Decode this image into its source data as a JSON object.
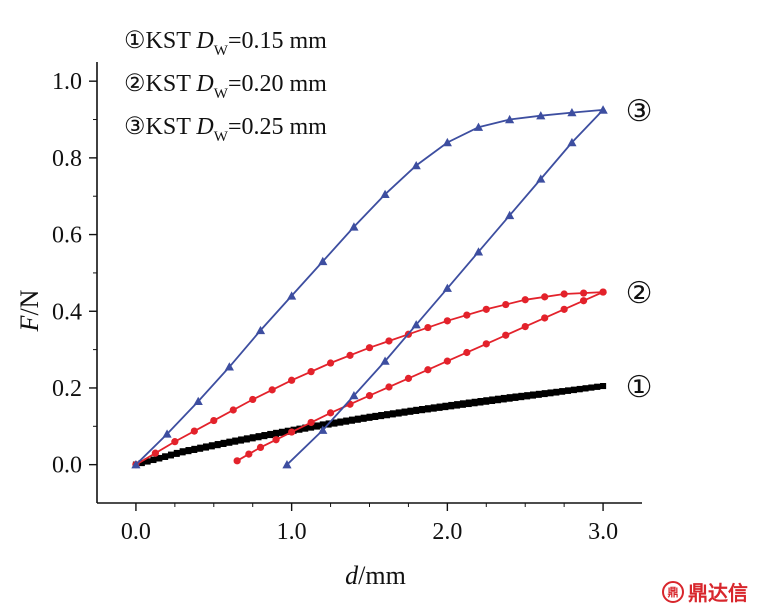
{
  "chart_data": {
    "type": "line",
    "xlabel_italic": "d",
    "xlabel_unit": "/mm",
    "ylabel_italic": "F",
    "ylabel_unit": "/N",
    "xlim": [
      -0.25,
      3.25
    ],
    "ylim": [
      -0.1,
      1.05
    ],
    "x_ticks": [
      0.0,
      1.0,
      2.0,
      3.0
    ],
    "x_tick_labels": [
      "0.0",
      "1.0",
      "2.0",
      "3.0"
    ],
    "y_ticks": [
      0.0,
      0.2,
      0.4,
      0.6,
      0.8,
      1.0
    ],
    "y_tick_labels": [
      "0.0",
      "0.2",
      "0.4",
      "0.6",
      "0.8",
      "1.0"
    ],
    "grid": false,
    "legend_position": "top-left",
    "series": [
      {
        "name": "①KST Dw=0.15 mm",
        "legend_marker": "①",
        "legend_prefix": "KST ",
        "legend_italic": "D",
        "legend_sub": "W",
        "legend_value": "=0.15 mm",
        "curve_label": "①",
        "color": "#000000",
        "marker": "square",
        "loading": [
          [
            0.0,
            0.0
          ],
          [
            0.3,
            0.035
          ],
          [
            0.6,
            0.06
          ],
          [
            0.9,
            0.083
          ],
          [
            1.2,
            0.105
          ],
          [
            1.5,
            0.125
          ],
          [
            1.8,
            0.143
          ],
          [
            2.1,
            0.16
          ],
          [
            2.4,
            0.176
          ],
          [
            2.7,
            0.19
          ],
          [
            3.0,
            0.205
          ]
        ],
        "unloading": [
          [
            3.0,
            0.205
          ],
          [
            2.7,
            0.188
          ],
          [
            2.4,
            0.172
          ],
          [
            2.1,
            0.156
          ],
          [
            1.8,
            0.14
          ],
          [
            1.5,
            0.122
          ],
          [
            1.2,
            0.102
          ],
          [
            0.9,
            0.08
          ],
          [
            0.6,
            0.057
          ],
          [
            0.3,
            0.032
          ],
          [
            0.0,
            0.0
          ]
        ]
      },
      {
        "name": "②KST Dw=0.20 mm",
        "legend_marker": "②",
        "legend_prefix": "KST ",
        "legend_italic": "D",
        "legend_sub": "W",
        "legend_value": "=0.20 mm",
        "curve_label": "②",
        "color": "#e3222b",
        "marker": "circle",
        "loading": [
          [
            0.0,
            0.0
          ],
          [
            0.25,
            0.06
          ],
          [
            0.5,
            0.115
          ],
          [
            0.75,
            0.17
          ],
          [
            1.0,
            0.22
          ],
          [
            1.25,
            0.265
          ],
          [
            1.5,
            0.305
          ],
          [
            1.75,
            0.34
          ],
          [
            2.0,
            0.375
          ],
          [
            2.25,
            0.405
          ],
          [
            2.5,
            0.43
          ],
          [
            2.75,
            0.445
          ],
          [
            3.0,
            0.45
          ]
        ],
        "unloading": [
          [
            3.0,
            0.45
          ],
          [
            2.75,
            0.405
          ],
          [
            2.5,
            0.36
          ],
          [
            2.25,
            0.315
          ],
          [
            2.0,
            0.27
          ],
          [
            1.75,
            0.225
          ],
          [
            1.5,
            0.18
          ],
          [
            1.25,
            0.135
          ],
          [
            1.0,
            0.085
          ],
          [
            0.8,
            0.045
          ],
          [
            0.65,
            0.01
          ]
        ]
      },
      {
        "name": "③KST Dw=0.25 mm",
        "legend_marker": "③",
        "legend_prefix": "KST ",
        "legend_italic": "D",
        "legend_sub": "W",
        "legend_value": "=0.25 mm",
        "curve_label": "③",
        "color": "#3d4ea0",
        "marker": "triangle",
        "loading": [
          [
            0.0,
            0.0
          ],
          [
            0.2,
            0.08
          ],
          [
            0.4,
            0.165
          ],
          [
            0.6,
            0.255
          ],
          [
            0.8,
            0.35
          ],
          [
            1.0,
            0.44
          ],
          [
            1.2,
            0.53
          ],
          [
            1.4,
            0.62
          ],
          [
            1.6,
            0.705
          ],
          [
            1.8,
            0.78
          ],
          [
            2.0,
            0.84
          ],
          [
            2.2,
            0.88
          ],
          [
            2.4,
            0.9
          ],
          [
            2.6,
            0.91
          ],
          [
            2.8,
            0.918
          ],
          [
            3.0,
            0.925
          ]
        ],
        "unloading": [
          [
            3.0,
            0.925
          ],
          [
            2.8,
            0.84
          ],
          [
            2.6,
            0.745
          ],
          [
            2.4,
            0.65
          ],
          [
            2.2,
            0.555
          ],
          [
            2.0,
            0.46
          ],
          [
            1.8,
            0.365
          ],
          [
            1.6,
            0.27
          ],
          [
            1.4,
            0.18
          ],
          [
            1.2,
            0.09
          ],
          [
            0.97,
            0.0
          ]
        ]
      }
    ]
  },
  "watermark": {
    "icon_text": "鼎",
    "text": "鼎达信"
  }
}
